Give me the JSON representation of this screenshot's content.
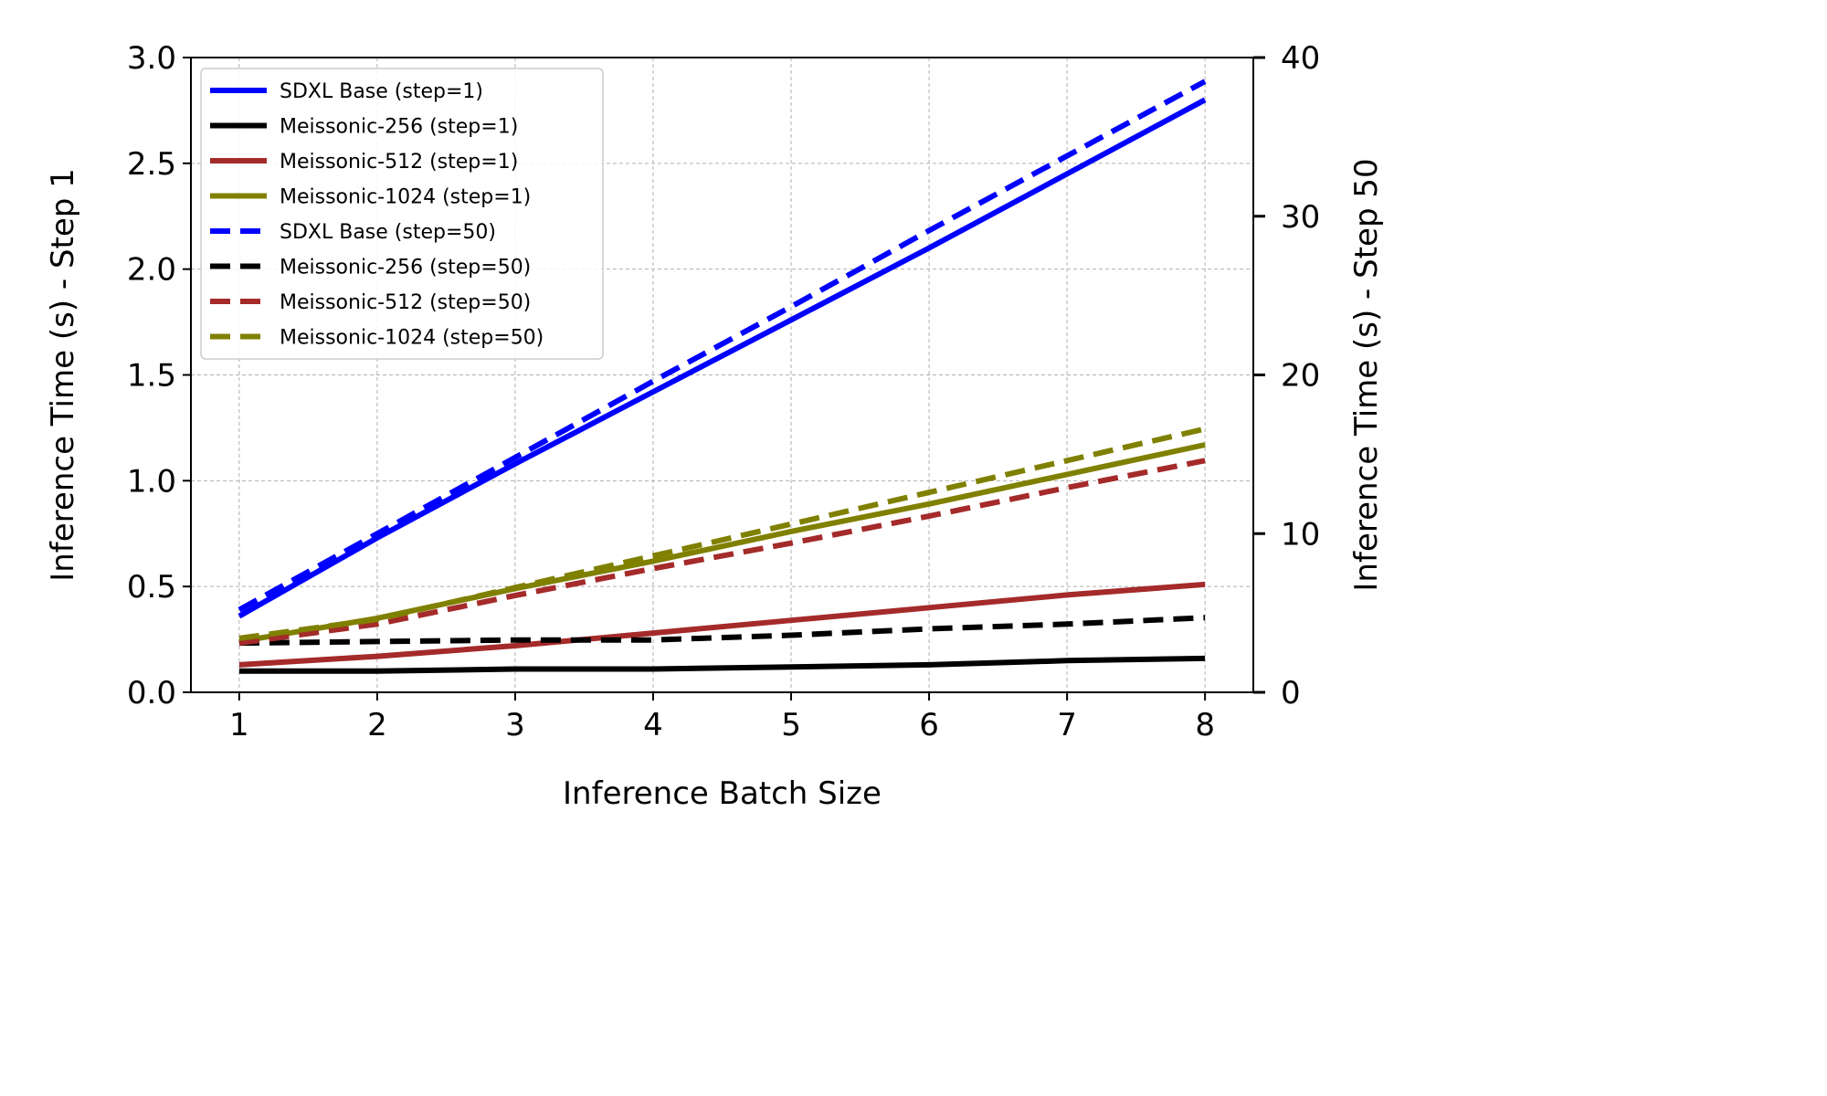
{
  "chart_data": {
    "type": "line",
    "title": "",
    "xlabel": "Inference Batch Size",
    "ylabel_left": "Inference Time (s) - Step 1",
    "ylabel_right": "Inference Time (s) - Step 50",
    "x": [
      1,
      2,
      3,
      4,
      5,
      6,
      7,
      8
    ],
    "x_ticks": [
      "1",
      "2",
      "3",
      "4",
      "5",
      "6",
      "7",
      "8"
    ],
    "y_left_ticks": [
      "0.0",
      "0.5",
      "1.0",
      "1.5",
      "2.0",
      "2.5",
      "3.0"
    ],
    "y_right_ticks": [
      "0",
      "10",
      "20",
      "30",
      "40"
    ],
    "ylim_left": [
      0,
      3.0
    ],
    "ylim_right": [
      0,
      40
    ],
    "xlim": [
      0.65,
      8.35
    ],
    "grid": true,
    "legend_position": "top-left",
    "series": [
      {
        "name": "SDXL Base (step=1)",
        "axis": "left",
        "style": "solid",
        "color": "#0000ff",
        "values": [
          0.36,
          0.73,
          1.08,
          1.42,
          1.76,
          2.1,
          2.45,
          2.8
        ]
      },
      {
        "name": "Meissonic-256 (step=1)",
        "axis": "left",
        "style": "solid",
        "color": "#000000",
        "values": [
          0.1,
          0.1,
          0.11,
          0.11,
          0.12,
          0.13,
          0.15,
          0.16
        ]
      },
      {
        "name": "Meissonic-512 (step=1)",
        "axis": "left",
        "style": "solid",
        "color": "#a52a2a",
        "values": [
          0.13,
          0.17,
          0.22,
          0.28,
          0.34,
          0.4,
          0.46,
          0.51
        ]
      },
      {
        "name": "Meissonic-1024 (step=1)",
        "axis": "left",
        "style": "solid",
        "color": "#808000",
        "values": [
          0.24,
          0.35,
          0.49,
          0.62,
          0.76,
          0.89,
          1.03,
          1.17
        ]
      },
      {
        "name": "SDXL Base (step=50)",
        "axis": "right",
        "style": "dashed",
        "color": "#0000ff",
        "values": [
          5.2,
          10.0,
          14.8,
          19.6,
          24.3,
          29.1,
          33.8,
          38.5
        ]
      },
      {
        "name": "Meissonic-256 (step=50)",
        "axis": "right",
        "style": "dashed",
        "color": "#000000",
        "values": [
          3.1,
          3.2,
          3.3,
          3.3,
          3.6,
          4.0,
          4.3,
          4.7
        ]
      },
      {
        "name": "Meissonic-512 (step=50)",
        "axis": "right",
        "style": "dashed",
        "color": "#a52a2a",
        "values": [
          3.1,
          4.3,
          6.1,
          7.8,
          9.4,
          11.1,
          12.9,
          14.6
        ]
      },
      {
        "name": "Meissonic-1024 (step=50)",
        "axis": "right",
        "style": "dashed",
        "color": "#808000",
        "values": [
          3.4,
          4.6,
          6.6,
          8.6,
          10.6,
          12.6,
          14.6,
          16.6
        ]
      }
    ]
  }
}
